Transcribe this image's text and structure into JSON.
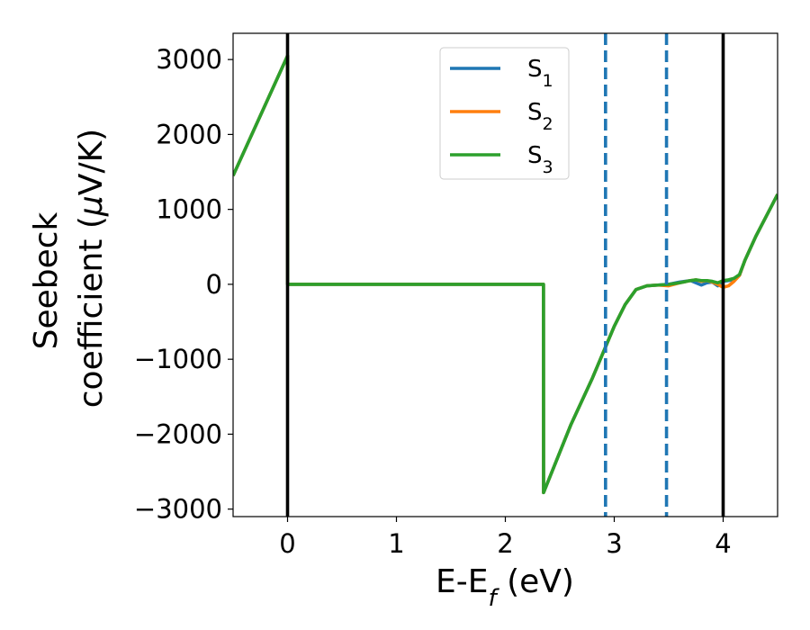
{
  "chart_data": {
    "type": "line",
    "xlabel_main": "E-E",
    "xlabel_sub": "f",
    "xlabel_tail": " (eV)",
    "ylabel_line1": "Seebeck",
    "ylabel_line2_pre": "coefficient  (",
    "ylabel_line2_mu": "μ",
    "ylabel_line2_post": "V/K)",
    "xlim": [
      -0.5,
      4.5
    ],
    "ylim": [
      -3100,
      3350
    ],
    "xticks": [
      0,
      1,
      2,
      3,
      4
    ],
    "xtick_labels": [
      "0",
      "1",
      "2",
      "3",
      "4"
    ],
    "yticks": [
      -3000,
      -2000,
      -1000,
      0,
      1000,
      2000,
      3000
    ],
    "ytick_labels": [
      "−3000",
      "−2000",
      "−1000",
      "0",
      "1000",
      "2000",
      "3000"
    ],
    "grid": false,
    "legend_position": "upper-center",
    "vertical_lines": [
      {
        "x": 0,
        "style": "solid",
        "color": "#000000"
      },
      {
        "x": 4,
        "style": "solid",
        "color": "#000000"
      },
      {
        "x": 2.92,
        "style": "dashed",
        "color": "#1f77b4"
      },
      {
        "x": 3.48,
        "style": "dashed",
        "color": "#1f77b4"
      }
    ],
    "series": [
      {
        "name_base": "S",
        "name_sub": "1",
        "color": "#1f77b4",
        "x": [
          -0.5,
          0.0,
          0.001,
          2.35,
          2.351,
          2.6,
          2.8,
          3.0,
          3.1,
          3.2,
          3.3,
          3.4,
          3.5,
          3.6,
          3.7,
          3.75,
          3.8,
          3.85,
          3.9,
          3.95,
          4.0,
          4.05,
          4.1,
          4.15,
          4.2,
          4.3,
          4.4,
          4.5
        ],
        "y": [
          1450,
          3050,
          0,
          0,
          -2780,
          -1880,
          -1250,
          -560,
          -270,
          -70,
          -20,
          -10,
          0,
          30,
          50,
          20,
          -10,
          20,
          30,
          -20,
          40,
          50,
          60,
          120,
          320,
          640,
          920,
          1200
        ]
      },
      {
        "name_base": "S",
        "name_sub": "2",
        "color": "#ff7f0e",
        "x": [
          -0.5,
          0.0,
          0.001,
          2.35,
          2.351,
          2.6,
          2.8,
          3.0,
          3.1,
          3.2,
          3.3,
          3.4,
          3.5,
          3.6,
          3.7,
          3.75,
          3.8,
          3.85,
          3.9,
          3.95,
          4.0,
          4.05,
          4.1,
          4.15,
          4.2,
          4.3,
          4.4,
          4.5
        ],
        "y": [
          1450,
          3050,
          0,
          0,
          -2780,
          -1880,
          -1250,
          -560,
          -270,
          -70,
          -20,
          -10,
          -20,
          20,
          50,
          60,
          40,
          50,
          30,
          0,
          -40,
          -20,
          40,
          120,
          320,
          640,
          920,
          1200
        ]
      },
      {
        "name_base": "S",
        "name_sub": "3",
        "color": "#2ca02c",
        "x": [
          -0.5,
          0.0,
          0.001,
          2.35,
          2.351,
          2.6,
          2.8,
          3.0,
          3.1,
          3.2,
          3.3,
          3.4,
          3.5,
          3.6,
          3.7,
          3.75,
          3.8,
          3.85,
          3.9,
          3.95,
          4.0,
          4.05,
          4.1,
          4.15,
          4.2,
          4.3,
          4.4,
          4.5
        ],
        "y": [
          1450,
          3050,
          0,
          0,
          -2780,
          -1880,
          -1250,
          -560,
          -270,
          -70,
          -20,
          -10,
          0,
          20,
          50,
          60,
          50,
          50,
          40,
          20,
          50,
          60,
          80,
          130,
          320,
          640,
          920,
          1200
        ]
      }
    ]
  }
}
